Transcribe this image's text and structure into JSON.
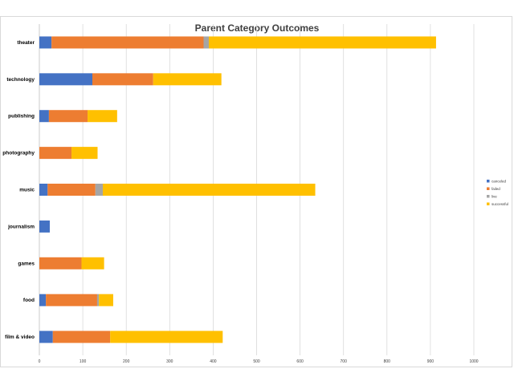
{
  "chart_data": {
    "type": "bar",
    "orientation": "horizontal",
    "stacked": true,
    "title": "Parent Category Outcomes",
    "categories": [
      "theater",
      "technology",
      "publishing",
      "photography",
      "music",
      "journalism",
      "games",
      "food",
      "film & video"
    ],
    "series": [
      {
        "name": "canceled",
        "color": "#4472c4",
        "values": [
          28,
          122,
          22,
          0,
          19,
          24,
          0,
          15,
          31
        ]
      },
      {
        "name": "failed",
        "color": "#ed7d31",
        "values": [
          350,
          140,
          89,
          74,
          110,
          0,
          97,
          118,
          132
        ]
      },
      {
        "name": "live",
        "color": "#a5a5a5",
        "values": [
          12,
          0,
          0,
          0,
          17,
          0,
          0,
          4,
          0
        ]
      },
      {
        "name": "successful",
        "color": "#ffc000",
        "values": [
          523,
          157,
          68,
          60,
          489,
          0,
          52,
          33,
          259
        ]
      }
    ],
    "x_ticks": [
      "0",
      "100",
      "200",
      "300",
      "400",
      "500",
      "600",
      "700",
      "800",
      "900",
      "1000"
    ],
    "xlim": [
      0,
      1000
    ],
    "grid": true,
    "legend_position": "right"
  }
}
